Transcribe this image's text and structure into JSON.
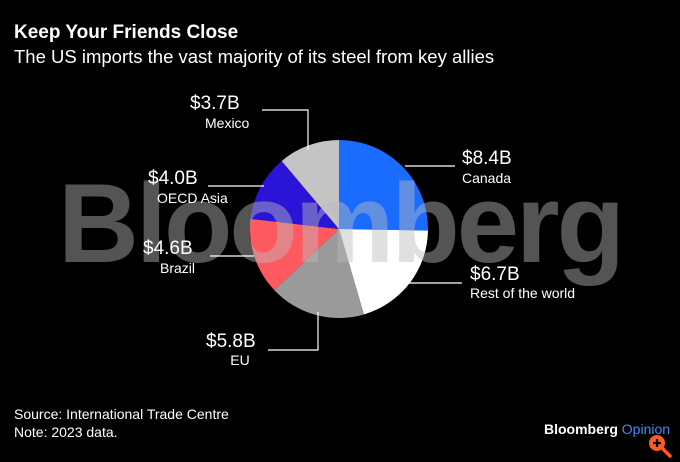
{
  "header": {
    "title": "Keep Your Friends Close",
    "subtitle": "The US imports the vast majority of its steel from key allies"
  },
  "chart_data": {
    "type": "pie",
    "title": "Keep Your Friends Close",
    "subtitle": "The US imports the vast majority of its steel from key allies",
    "unit": "USD billions",
    "slices": [
      {
        "name": "Canada",
        "value": 8.4,
        "label": "$8.4B",
        "color": "#1a6cff"
      },
      {
        "name": "Rest of the world",
        "value": 6.7,
        "label": "$6.7B",
        "color": "#ffffff"
      },
      {
        "name": "EU",
        "value": 5.8,
        "label": "$5.8B",
        "color": "#9a9a9a"
      },
      {
        "name": "Brazil",
        "value": 4.6,
        "label": "$4.6B",
        "color": "#ff5a5f"
      },
      {
        "name": "OECD Asia",
        "value": 4.0,
        "label": "$4.0B",
        "color": "#2a14d8"
      },
      {
        "name": "Mexico",
        "value": 3.7,
        "label": "$3.7B",
        "color": "#c4c4c4"
      }
    ]
  },
  "watermark": "Bloomberg",
  "footer": {
    "source": "Source: International Trade Centre",
    "note": "Note: 2023 data."
  },
  "brand": {
    "name": "Bloomberg",
    "product": "Opinion"
  },
  "icons": {
    "zoom": "zoom-in-icon"
  }
}
